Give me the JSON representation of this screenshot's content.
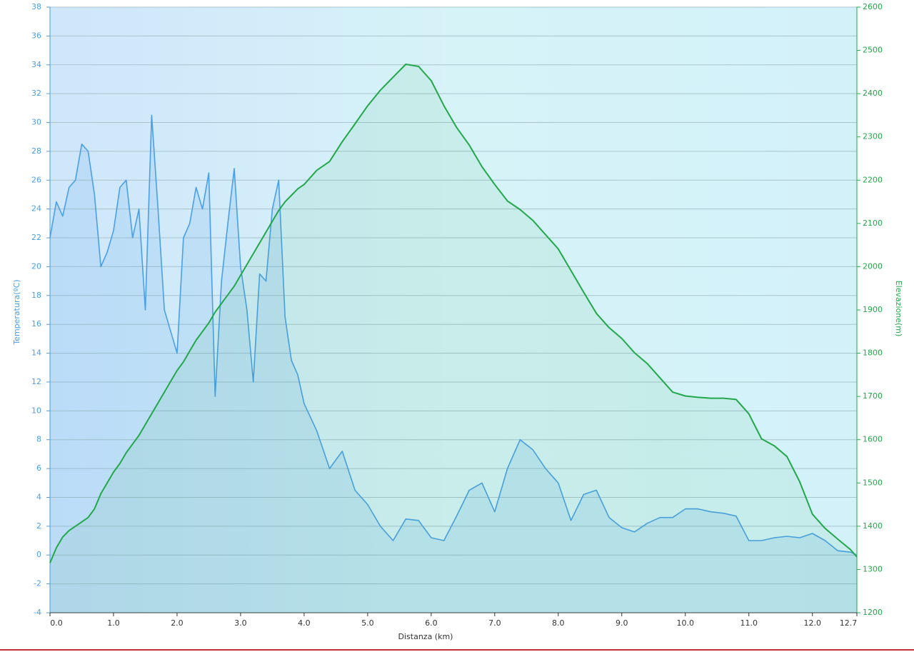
{
  "chart_data": {
    "type": "line",
    "xlabel": "Distanza  (km)",
    "ylabel": "Temperatura(ºC)",
    "y2label": "Elevazione(m)",
    "x": [
      0,
      0.1,
      0.2,
      0.3,
      0.4,
      0.5,
      0.6,
      0.7,
      0.8,
      0.9,
      1.0,
      1.1,
      1.2,
      1.3,
      1.4,
      1.5,
      1.6,
      1.7,
      1.8,
      1.9,
      2.0,
      2.1,
      2.2,
      2.3,
      2.4,
      2.5,
      2.6,
      2.7,
      2.8,
      2.9,
      3.0,
      3.1,
      3.2,
      3.3,
      3.4,
      3.5,
      3.6,
      3.7,
      3.8,
      3.9,
      4.0,
      4.2,
      4.4,
      4.6,
      4.8,
      5.0,
      5.2,
      5.4,
      5.6,
      5.8,
      6.0,
      6.2,
      6.4,
      6.6,
      6.8,
      7.0,
      7.2,
      7.4,
      7.6,
      7.8,
      8.0,
      8.2,
      8.4,
      8.6,
      8.8,
      9.0,
      9.2,
      9.4,
      9.6,
      9.8,
      10.0,
      10.2,
      10.4,
      10.6,
      10.8,
      11.0,
      11.2,
      11.4,
      11.6,
      11.8,
      12.0,
      12.2,
      12.4,
      12.6,
      12.7
    ],
    "series": [
      {
        "name": "Temperatura",
        "color": "#4a9fe6",
        "axis": "y",
        "values": [
          22,
          24.5,
          23.5,
          25.5,
          26,
          28.5,
          28,
          25,
          20,
          21,
          22.5,
          25.5,
          26,
          22,
          24,
          17,
          30.5,
          24,
          17,
          15.5,
          14,
          22,
          23,
          25.5,
          24,
          26.5,
          11,
          19,
          23,
          26.8,
          20,
          17,
          12,
          19.5,
          19,
          24,
          26,
          16.5,
          13.5,
          12.5,
          10.5,
          8.6,
          6,
          7.2,
          4.5,
          3.5,
          2,
          1,
          2.5,
          2.4,
          1.2,
          1,
          2.7,
          4.5,
          5,
          3,
          6,
          8,
          7.3,
          6,
          5,
          2.4,
          4.2,
          4.5,
          2.6,
          1.9,
          1.6,
          2.2,
          2.6,
          2.6,
          3.2,
          3.2,
          3.0,
          2.9,
          2.7,
          1,
          1,
          1.2,
          1.3,
          1.2,
          1.5,
          1,
          0.3,
          0.2,
          0
        ]
      },
      {
        "name": "Elevazione",
        "color": "#22a84a",
        "axis": "y2",
        "values": [
          1315,
          1350,
          1375,
          1390,
          1400,
          1410,
          1420,
          1440,
          1475,
          1500,
          1525,
          1545,
          1570,
          1590,
          1610,
          1635,
          1660,
          1685,
          1710,
          1735,
          1760,
          1780,
          1805,
          1830,
          1850,
          1870,
          1895,
          1915,
          1935,
          1955,
          1980,
          2005,
          2030,
          2055,
          2080,
          2105,
          2130,
          2150,
          2165,
          2180,
          2190,
          2223,
          2243,
          2289,
          2330,
          2372,
          2408,
          2438,
          2468,
          2463,
          2430,
          2372,
          2322,
          2281,
          2231,
          2190,
          2152,
          2132,
          2107,
          2074,
          2041,
          1991,
          1941,
          1892,
          1859,
          1834,
          1801,
          1776,
          1743,
          1710,
          1701,
          1698,
          1696,
          1696,
          1693,
          1660,
          1602,
          1586,
          1561,
          1503,
          1428,
          1395,
          1370,
          1346,
          1329
        ]
      }
    ],
    "xlim": [
      0,
      12.7
    ],
    "xticks": [
      {
        "value": 0,
        "label": "0.0"
      },
      {
        "value": 1,
        "label": "1.0"
      },
      {
        "value": 2,
        "label": "2.0"
      },
      {
        "value": 3,
        "label": "3.0"
      },
      {
        "value": 4,
        "label": "4.0"
      },
      {
        "value": 5,
        "label": "5.0"
      },
      {
        "value": 6,
        "label": "6.0"
      },
      {
        "value": 7,
        "label": "7.0"
      },
      {
        "value": 8,
        "label": "8.0"
      },
      {
        "value": 9,
        "label": "9.0"
      },
      {
        "value": 10,
        "label": "10.0"
      },
      {
        "value": 11,
        "label": "11.0"
      },
      {
        "value": 12,
        "label": "12.0"
      },
      12.7
    ],
    "ylim": [
      -4,
      38
    ],
    "yticks": [
      -4,
      -2,
      0,
      2,
      4,
      6,
      8,
      10,
      12,
      14,
      16,
      18,
      20,
      22,
      24,
      26,
      28,
      30,
      32,
      34,
      36,
      38
    ],
    "y2lim": [
      1200,
      2600
    ],
    "y2ticks": [
      1200,
      1300,
      1400,
      1500,
      1600,
      1700,
      1800,
      1900,
      2000,
      2100,
      2200,
      2300,
      2400,
      2500,
      2600
    ],
    "grid": true
  }
}
